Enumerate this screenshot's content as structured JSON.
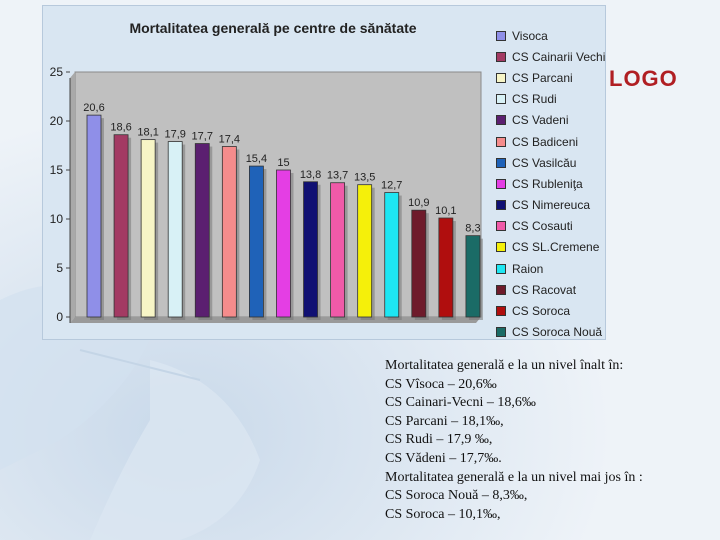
{
  "logo_text": "LOGO",
  "chart_data": {
    "type": "bar",
    "title": "Mortalitatea generală pe centre de sănătate",
    "xlabel": "",
    "ylabel": "",
    "ylim": [
      0,
      25
    ],
    "yticks": [
      "0",
      "5",
      "10",
      "15",
      "20",
      "25"
    ],
    "grid": false,
    "legend_position": "right",
    "categories": [
      "Visoca",
      "CS Cainarii Vechi",
      "CS Parcani",
      "CS Rudi",
      "CS Vadeni",
      "CS Badiceni",
      "CS Vasilcău",
      "CS Rubleniţa",
      "CS Nimereuca",
      "CS Cosauti",
      "CS SL.Cremene",
      "Raion",
      "CS Racovat",
      "CS Soroca",
      "CS Soroca Nouă"
    ],
    "values": [
      20.6,
      18.6,
      18.1,
      17.9,
      17.7,
      17.4,
      15.4,
      15,
      13.8,
      13.7,
      13.5,
      12.7,
      10.9,
      10.1,
      8.3
    ],
    "value_labels": [
      "20,6",
      "18,6",
      "18,1",
      "17,9",
      "17,7",
      "17,4",
      "15,4",
      "15",
      "13,8",
      "13,7",
      "13,5",
      "12,7",
      "10,9",
      "10,1",
      "8,3"
    ],
    "colors": [
      "#8f8fe8",
      "#a33a63",
      "#f7f5c6",
      "#d8f1f6",
      "#5b1f70",
      "#f58c8c",
      "#1f62b8",
      "#e43ee4",
      "#101073",
      "#f05aa8",
      "#f5f00a",
      "#1ee6f2",
      "#6e1b2b",
      "#b00e0e",
      "#1a6b66"
    ]
  },
  "notes": [
    "Mortalitatea generală e la un nivel înalt în:",
    "CS Vîsoca – 20,6‰",
    "CS Cainari-Vecni – 18,6‰",
    "CS Parcani – 18,1‰,",
    "CS Rudi – 17,9 ‰,",
    "CS Vădeni – 17,7‰.",
    "Mortalitatea generală e la un nivel mai jos în :",
    "CS Soroca Nouă – 8,3‰,",
    "CS Soroca – 10,1‰,"
  ]
}
